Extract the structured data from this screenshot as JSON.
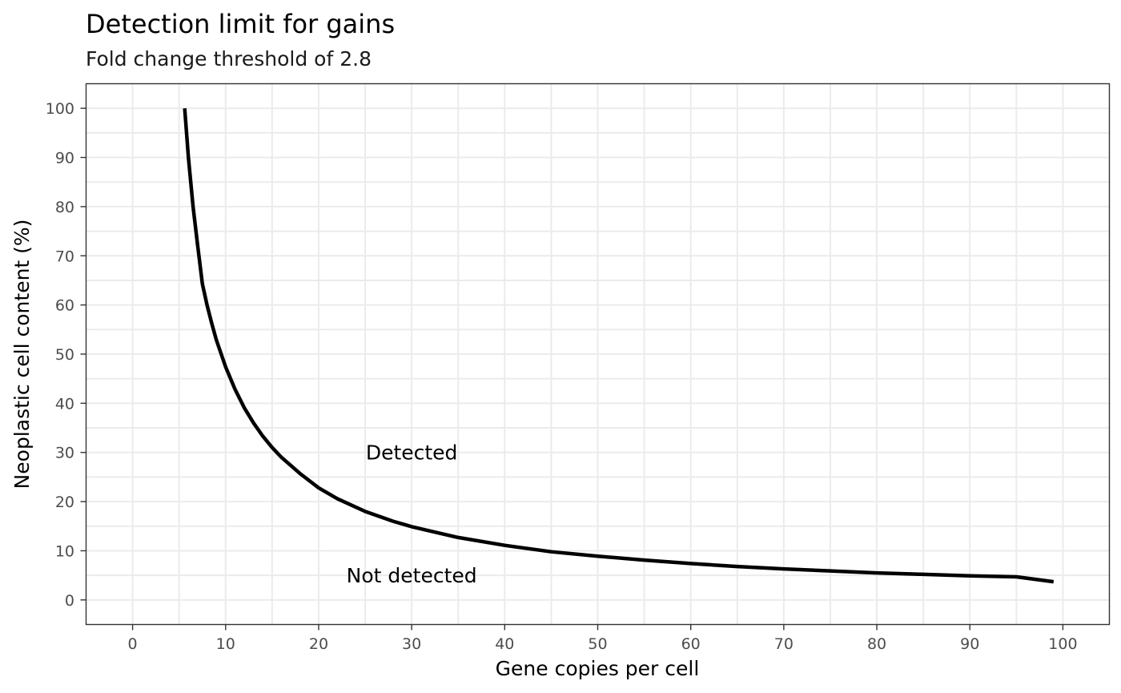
{
  "chart_data": {
    "type": "line",
    "title": "Detection limit for gains",
    "subtitle": "Fold change threshold of 2.8",
    "xlabel": "Gene copies per cell",
    "ylabel": "Neoplastic cell content (%)",
    "xlim": [
      -5,
      105
    ],
    "ylim": [
      -5,
      105
    ],
    "x_ticks": [
      0,
      10,
      20,
      30,
      40,
      50,
      60,
      70,
      80,
      90,
      100
    ],
    "y_ticks": [
      0,
      10,
      20,
      30,
      40,
      50,
      60,
      70,
      80,
      90,
      100
    ],
    "grid": true,
    "legend": "none",
    "line_color": "#000000",
    "series": [
      {
        "x": [
          5.6,
          6,
          6.5,
          7,
          7.5,
          8,
          8.5,
          9,
          10,
          11,
          12,
          13,
          14,
          15,
          16,
          18,
          20,
          22,
          25,
          28,
          30,
          35,
          40,
          45,
          50,
          55,
          60,
          65,
          70,
          75,
          80,
          85,
          90,
          95,
          99
        ],
        "y": [
          100,
          90,
          80,
          72,
          64.3,
          60,
          56.3,
          52.9,
          47.4,
          42.9,
          39.1,
          36,
          33.3,
          31,
          29,
          25.7,
          22.8,
          20.6,
          18,
          16,
          14.9,
          12.7,
          11.1,
          9.8,
          8.9,
          8.1,
          7.4,
          6.8,
          6.3,
          5.9,
          5.5,
          5.2,
          4.9,
          4.7,
          3.7
        ]
      }
    ],
    "annotations": [
      {
        "text": "Detected",
        "x": 30,
        "y": 30
      },
      {
        "text": "Not detected",
        "x": 30,
        "y": 5
      }
    ]
  }
}
